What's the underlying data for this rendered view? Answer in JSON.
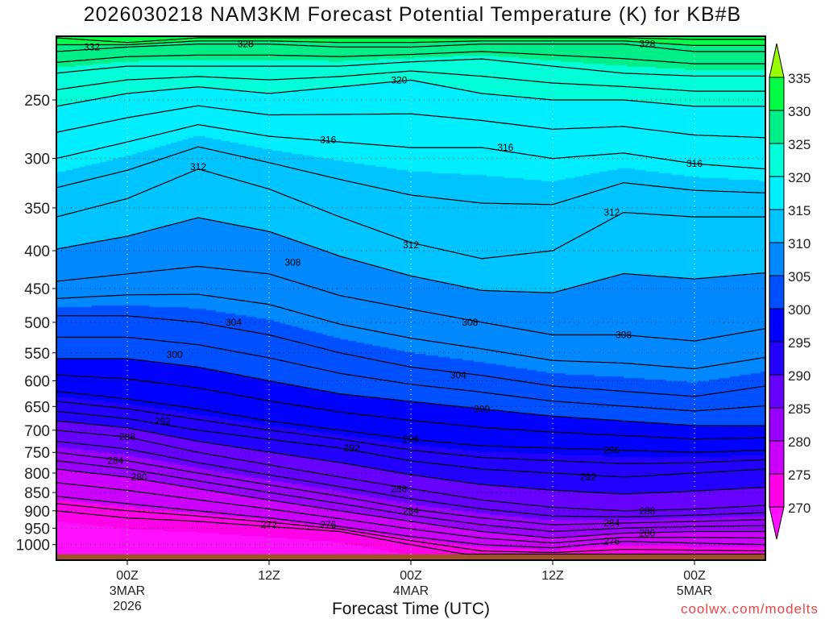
{
  "title": "2026030218 NAM3KM Forecast Potential Temperature (K) for KB#B",
  "credit": "coolwx.com/modelts",
  "chart_data": {
    "type": "heatmap",
    "subtype": "time-pressure cross-section, filled contours with isentropes",
    "title": "2026030218 NAM3KM Forecast Potential Temperature (K) for KB#B",
    "xlabel": "Forecast Time (UTC)",
    "ylabel": "",
    "xlim_hours": [
      -6,
      54
    ],
    "ylim_hPa": [
      1050,
      205
    ],
    "yscale": "log",
    "x_ticks": [
      {
        "hour": 0,
        "label": [
          "00Z",
          "3MAR",
          "2026"
        ]
      },
      {
        "hour": 12,
        "label": [
          "12Z"
        ]
      },
      {
        "hour": 24,
        "label": [
          "00Z",
          "4MAR"
        ]
      },
      {
        "hour": 36,
        "label": [
          "12Z"
        ]
      },
      {
        "hour": 48,
        "label": [
          "00Z",
          "5MAR"
        ]
      }
    ],
    "y_ticks": [
      250,
      300,
      350,
      400,
      450,
      500,
      550,
      600,
      650,
      700,
      750,
      800,
      850,
      900,
      950,
      1000
    ],
    "surface_pressure_hPa": 1030,
    "colorbar": {
      "levels": [
        270,
        275,
        280,
        285,
        290,
        295,
        300,
        305,
        310,
        315,
        320,
        325,
        330,
        335
      ],
      "colors": [
        "#ff10ff",
        "#ff00e8",
        "#cc00ff",
        "#9900ff",
        "#6600ff",
        "#2200ff",
        "#0000ff",
        "#0050ff",
        "#0088ff",
        "#00c4ff",
        "#00eeff",
        "#00ffd8",
        "#00ee88",
        "#00ff44",
        "#99ff00"
      ]
    },
    "ground_color": "#a0522d",
    "times": [
      -6,
      0,
      6,
      12,
      18,
      24,
      30,
      36,
      42,
      48,
      54
    ],
    "isentropes": [
      {
        "theta": 272,
        "p": [
          900,
          920,
          930,
          945,
          960,
          1000,
          1040,
          1040,
          1040,
          1040,
          1040
        ]
      },
      {
        "theta": 276,
        "p": [
          860,
          880,
          900,
          920,
          945,
          975,
          1000,
          1010,
          990,
          995,
          1000
        ]
      },
      {
        "theta": 280,
        "p": [
          790,
          810,
          840,
          870,
          900,
          930,
          960,
          980,
          965,
          960,
          960
        ]
      },
      {
        "theta": 284,
        "p": [
          750,
          770,
          800,
          830,
          860,
          895,
          920,
          940,
          935,
          930,
          925
        ]
      },
      {
        "theta": 288,
        "p": [
          700,
          715,
          750,
          780,
          810,
          840,
          870,
          890,
          900,
          895,
          885
        ]
      },
      {
        "theta": 292,
        "p": [
          660,
          675,
          700,
          720,
          740,
          770,
          790,
          800,
          810,
          800,
          790
        ]
      },
      {
        "theta": 296,
        "p": [
          620,
          635,
          655,
          680,
          700,
          720,
          735,
          740,
          745,
          750,
          745
        ]
      },
      {
        "theta": 300,
        "p": [
          560,
          560,
          575,
          600,
          625,
          640,
          655,
          670,
          680,
          690,
          690
        ]
      },
      {
        "theta": 304,
        "p": [
          490,
          490,
          500,
          520,
          550,
          575,
          590,
          610,
          620,
          630,
          610
        ]
      },
      {
        "theta": 308,
        "p": [
          440,
          430,
          420,
          430,
          460,
          480,
          500,
          520,
          520,
          530,
          510
        ]
      },
      {
        "theta": 312,
        "p": [
          360,
          340,
          310,
          330,
          360,
          390,
          410,
          400,
          355,
          360,
          360
        ]
      },
      {
        "theta": 316,
        "p": [
          300,
          285,
          270,
          280,
          285,
          290,
          290,
          300,
          295,
          305,
          310
        ]
      },
      {
        "theta": 320,
        "p": [
          255,
          245,
          240,
          245,
          240,
          235,
          245,
          250,
          250,
          255,
          255
        ]
      },
      {
        "theta": 324,
        "p": [
          230,
          225,
          225,
          225,
          225,
          222,
          220,
          225,
          230,
          232,
          232
        ]
      },
      {
        "theta": 328,
        "p": [
          215,
          212,
          210,
          210,
          212,
          212,
          210,
          210,
          210,
          215,
          215
        ]
      },
      {
        "theta": 332,
        "p": [
          206,
          209,
          206,
          206,
          206,
          206,
          206,
          206,
          206,
          207,
          207
        ]
      }
    ],
    "contour_labels": [
      {
        "text": "332",
        "hour": -3,
        "p": 212
      },
      {
        "text": "328",
        "hour": 10,
        "p": 210
      },
      {
        "text": "328",
        "hour": 44,
        "p": 210
      },
      {
        "text": "320",
        "hour": 23,
        "p": 235
      },
      {
        "text": "316",
        "hour": 17,
        "p": 283
      },
      {
        "text": "316",
        "hour": 32,
        "p": 290
      },
      {
        "text": "316",
        "hour": 48,
        "p": 305
      },
      {
        "text": "312",
        "hour": 6,
        "p": 308
      },
      {
        "text": "312",
        "hour": 24,
        "p": 393
      },
      {
        "text": "312",
        "hour": 41,
        "p": 355
      },
      {
        "text": "308",
        "hour": 14,
        "p": 415
      },
      {
        "text": "308",
        "hour": 29,
        "p": 500
      },
      {
        "text": "308",
        "hour": 42,
        "p": 520
      },
      {
        "text": "304",
        "hour": 9,
        "p": 500
      },
      {
        "text": "304",
        "hour": 28,
        "p": 590
      },
      {
        "text": "300",
        "hour": 4,
        "p": 553
      },
      {
        "text": "300",
        "hour": 30,
        "p": 655
      },
      {
        "text": "296",
        "hour": 24,
        "p": 720
      },
      {
        "text": "296",
        "hour": 41,
        "p": 745
      },
      {
        "text": "292",
        "hour": 3,
        "p": 680
      },
      {
        "text": "292",
        "hour": 19,
        "p": 740
      },
      {
        "text": "292",
        "hour": 39,
        "p": 810
      },
      {
        "text": "288",
        "hour": 0,
        "p": 715
      },
      {
        "text": "288",
        "hour": 23,
        "p": 840
      },
      {
        "text": "288",
        "hour": 44,
        "p": 900
      },
      {
        "text": "284",
        "hour": -1,
        "p": 770
      },
      {
        "text": "284",
        "hour": 24,
        "p": 900
      },
      {
        "text": "284",
        "hour": 41,
        "p": 935
      },
      {
        "text": "280",
        "hour": 1,
        "p": 810
      },
      {
        "text": "280",
        "hour": 44,
        "p": 965
      },
      {
        "text": "276",
        "hour": 17,
        "p": 940
      },
      {
        "text": "276",
        "hour": 41,
        "p": 990
      },
      {
        "text": "272",
        "hour": 12,
        "p": 940
      }
    ]
  }
}
